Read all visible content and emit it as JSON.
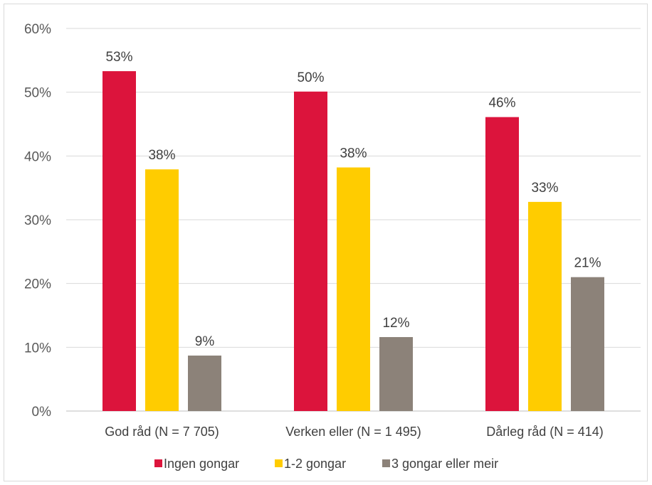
{
  "chart_data": {
    "type": "bar",
    "categories": [
      "God råd (N = 7 705)",
      "Verken eller (N = 1 495)",
      "Dårleg råd (N = 414)"
    ],
    "series": [
      {
        "name": "Ingen gongar",
        "color": "#dc143c",
        "values": [
          53.3,
          50.1,
          46.1
        ],
        "labels": [
          "53%",
          "50%",
          "46%"
        ]
      },
      {
        "name": "1-2 gongar",
        "color": "#ffcc00",
        "values": [
          37.9,
          38.2,
          32.8
        ],
        "labels": [
          "38%",
          "38%",
          "33%"
        ]
      },
      {
        "name": "3 gongar eller meir",
        "color": "#8c8279",
        "values": [
          8.7,
          11.6,
          21.0
        ],
        "labels": [
          "9%",
          "12%",
          "21%"
        ]
      }
    ],
    "ylim": [
      0,
      60
    ],
    "yticks": [
      "0%",
      "10%",
      "20%",
      "30%",
      "40%",
      "50%",
      "60%"
    ],
    "grid": true,
    "legend": "bottom"
  }
}
